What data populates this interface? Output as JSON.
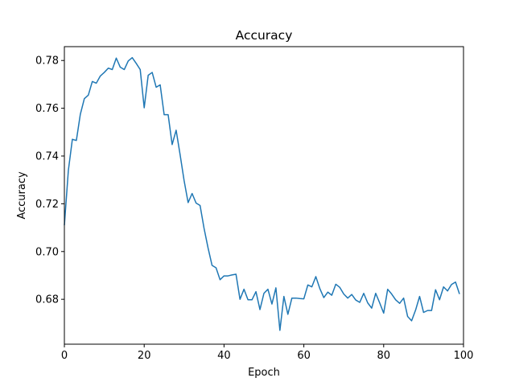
{
  "chart_data": {
    "type": "line",
    "title": "Accuracy",
    "xlabel": "Epoch",
    "ylabel": "Accuracy",
    "xlim": [
      0,
      100
    ],
    "ylim": [
      0.6612,
      0.7858
    ],
    "xticks": [
      0,
      20,
      40,
      60,
      80,
      100
    ],
    "yticks": [
      0.68,
      0.7,
      0.72,
      0.74,
      0.76,
      0.78
    ],
    "ytick_labels": [
      "0.68",
      "0.70",
      "0.72",
      "0.74",
      "0.76",
      "0.78"
    ],
    "grid": false,
    "line_color": "#1f77b4",
    "series": [
      {
        "x": [
          0,
          1,
          2,
          3,
          4,
          5,
          6,
          7,
          8,
          9,
          10,
          11,
          12,
          13,
          14,
          15,
          16,
          17,
          18,
          19,
          20,
          21,
          22,
          23,
          24,
          25,
          26,
          27,
          28,
          29,
          30,
          31,
          32,
          33,
          34,
          35,
          36,
          37,
          38,
          39,
          40,
          41,
          42,
          43,
          44,
          45,
          46,
          47,
          48,
          49,
          50,
          51,
          52,
          53,
          54,
          55,
          56,
          57,
          58,
          59,
          60,
          61,
          62,
          63,
          64,
          65,
          66,
          67,
          68,
          69,
          70,
          71,
          72,
          73,
          74,
          75,
          76,
          77,
          78,
          79,
          80,
          81,
          82,
          83,
          84,
          85,
          86,
          87,
          88,
          89,
          90,
          91,
          92,
          93,
          94,
          95,
          96,
          97,
          98,
          99
        ],
        "y": [
          0.711,
          0.734,
          0.747,
          0.7465,
          0.7575,
          0.764,
          0.7655,
          0.7712,
          0.7705,
          0.7735,
          0.775,
          0.7768,
          0.7762,
          0.781,
          0.7772,
          0.7762,
          0.7798,
          0.7812,
          0.7788,
          0.7762,
          0.7602,
          0.7738,
          0.775,
          0.7688,
          0.7698,
          0.7573,
          0.7573,
          0.7448,
          0.7508,
          0.7405,
          0.7297,
          0.7205,
          0.7243,
          0.7203,
          0.7193,
          0.7097,
          0.7015,
          0.6942,
          0.6932,
          0.6882,
          0.6898,
          0.6898,
          0.6902,
          0.6905,
          0.68,
          0.6842,
          0.6798,
          0.6798,
          0.6832,
          0.6757,
          0.6825,
          0.6842,
          0.678,
          0.6848,
          0.667,
          0.6812,
          0.6737,
          0.6805,
          0.6805,
          0.6803,
          0.6802,
          0.686,
          0.6852,
          0.6895,
          0.6845,
          0.6807,
          0.683,
          0.6817,
          0.6863,
          0.685,
          0.6822,
          0.6805,
          0.682,
          0.6797,
          0.6787,
          0.6825,
          0.6785,
          0.6763,
          0.6825,
          0.6785,
          0.6742,
          0.6842,
          0.6822,
          0.6798,
          0.6783,
          0.6805,
          0.6728,
          0.671,
          0.6755,
          0.6812,
          0.6745,
          0.6753,
          0.6753,
          0.684,
          0.6798,
          0.6852,
          0.6835,
          0.6862,
          0.6872,
          0.6822
        ]
      }
    ]
  }
}
